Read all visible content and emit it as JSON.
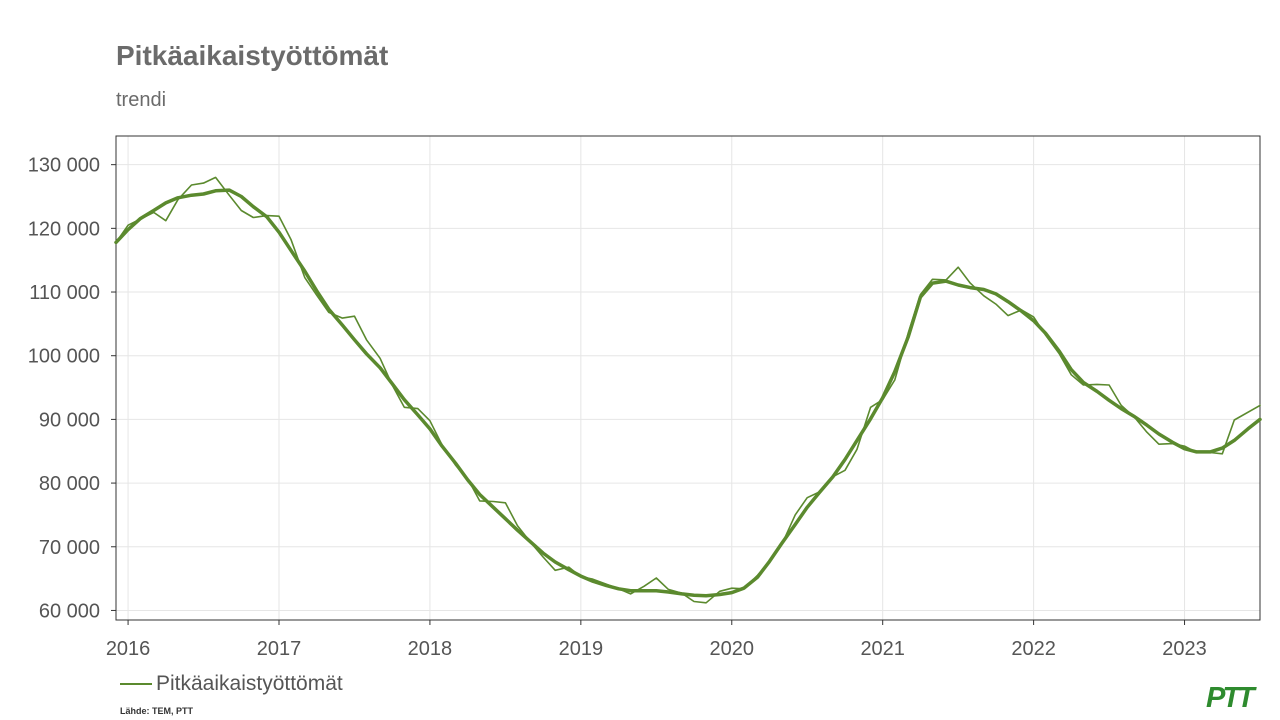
{
  "header": {
    "title": "Pitkäaikaistyöttömät",
    "subtitle": "trendi"
  },
  "legend": {
    "label": "Pitkäaikaistyöttömät"
  },
  "footer": {
    "source": "Lähde: TEM, PTT",
    "logo": "PTT"
  },
  "colors": {
    "series": "#5b8a2e",
    "grid": "#e6e6e6",
    "axis": "#333333",
    "logo": "#2e8b2e"
  },
  "chart_data": {
    "type": "line",
    "title": "Pitkäaikaistyöttömät",
    "subtitle": "trendi",
    "xlabel": "",
    "ylabel": "",
    "grid": true,
    "legend_position": "bottom-left",
    "xlim": [
      2015.92,
      2023.5
    ],
    "ylim": [
      58500,
      134500
    ],
    "x_ticks": [
      2016,
      2017,
      2018,
      2019,
      2020,
      2021,
      2022,
      2023
    ],
    "x_tick_labels": [
      "2016",
      "2017",
      "2018",
      "2019",
      "2020",
      "2021",
      "2022",
      "2023"
    ],
    "y_ticks": [
      60000,
      70000,
      80000,
      90000,
      100000,
      110000,
      120000,
      130000
    ],
    "y_tick_labels": [
      "60 000",
      "70 000",
      "80 000",
      "90 000",
      "100 000",
      "110 000",
      "120 000",
      "130 000"
    ],
    "series": [
      {
        "name": "Pitkäaikaistyöttömät",
        "style": "thin",
        "points": [
          [
            2015.92,
            117800
          ],
          [
            2016.0,
            120500
          ],
          [
            2016.17,
            122500
          ],
          [
            2016.25,
            121200
          ],
          [
            2016.33,
            124500
          ],
          [
            2016.42,
            126800
          ],
          [
            2016.5,
            127100
          ],
          [
            2016.58,
            128000
          ],
          [
            2016.67,
            125200
          ],
          [
            2016.75,
            122800
          ],
          [
            2016.83,
            121700
          ],
          [
            2016.92,
            122000
          ],
          [
            2017.0,
            121900
          ],
          [
            2017.08,
            118200
          ],
          [
            2017.17,
            112300
          ],
          [
            2017.25,
            109500
          ],
          [
            2017.33,
            106800
          ],
          [
            2017.42,
            105900
          ],
          [
            2017.5,
            106200
          ],
          [
            2017.58,
            102500
          ],
          [
            2017.67,
            99600
          ],
          [
            2017.75,
            95400
          ],
          [
            2017.83,
            91900
          ],
          [
            2017.92,
            91700
          ],
          [
            2018.0,
            89800
          ],
          [
            2018.08,
            86000
          ],
          [
            2018.17,
            82800
          ],
          [
            2018.25,
            80700
          ],
          [
            2018.33,
            77200
          ],
          [
            2018.42,
            77100
          ],
          [
            2018.5,
            76900
          ],
          [
            2018.58,
            73300
          ],
          [
            2018.67,
            70600
          ],
          [
            2018.75,
            68400
          ],
          [
            2018.83,
            66300
          ],
          [
            2018.92,
            66800
          ],
          [
            2019.0,
            65300
          ],
          [
            2019.08,
            64900
          ],
          [
            2019.17,
            64100
          ],
          [
            2019.25,
            63400
          ],
          [
            2019.33,
            62600
          ],
          [
            2019.42,
            63800
          ],
          [
            2019.5,
            65100
          ],
          [
            2019.58,
            63300
          ],
          [
            2019.67,
            62700
          ],
          [
            2019.75,
            61400
          ],
          [
            2019.83,
            61200
          ],
          [
            2019.92,
            63000
          ],
          [
            2020.0,
            63500
          ],
          [
            2020.08,
            63400
          ],
          [
            2020.17,
            65500
          ],
          [
            2020.25,
            67600
          ],
          [
            2020.33,
            70300
          ],
          [
            2020.42,
            75000
          ],
          [
            2020.5,
            77700
          ],
          [
            2020.58,
            78600
          ],
          [
            2020.67,
            81000
          ],
          [
            2020.75,
            82000
          ],
          [
            2020.83,
            85300
          ],
          [
            2020.92,
            91900
          ],
          [
            2021.0,
            93100
          ],
          [
            2021.08,
            96200
          ],
          [
            2021.17,
            103600
          ],
          [
            2021.25,
            109600
          ],
          [
            2021.33,
            112000
          ],
          [
            2021.42,
            111900
          ],
          [
            2021.5,
            113900
          ],
          [
            2021.58,
            111400
          ],
          [
            2021.67,
            109400
          ],
          [
            2021.75,
            108100
          ],
          [
            2021.83,
            106300
          ],
          [
            2021.92,
            107200
          ],
          [
            2022.0,
            106100
          ],
          [
            2022.08,
            103200
          ],
          [
            2022.17,
            100300
          ],
          [
            2022.25,
            97000
          ],
          [
            2022.33,
            95400
          ],
          [
            2022.42,
            95500
          ],
          [
            2022.5,
            95400
          ],
          [
            2022.58,
            92200
          ],
          [
            2022.67,
            90300
          ],
          [
            2022.75,
            88000
          ],
          [
            2022.83,
            86100
          ],
          [
            2022.92,
            86200
          ],
          [
            2023.0,
            85800
          ],
          [
            2023.08,
            84800
          ],
          [
            2023.17,
            84800
          ],
          [
            2023.25,
            84600
          ],
          [
            2023.33,
            89900
          ],
          [
            2023.5,
            92200
          ]
        ]
      },
      {
        "name": "Pitkäaikaistyöttömät",
        "style": "thick",
        "points": [
          [
            2015.92,
            117800
          ],
          [
            2016.0,
            119800
          ],
          [
            2016.08,
            121500
          ],
          [
            2016.17,
            122800
          ],
          [
            2016.25,
            124000
          ],
          [
            2016.33,
            124800
          ],
          [
            2016.42,
            125200
          ],
          [
            2016.5,
            125400
          ],
          [
            2016.58,
            125900
          ],
          [
            2016.67,
            126000
          ],
          [
            2016.75,
            125000
          ],
          [
            2016.83,
            123400
          ],
          [
            2016.92,
            121800
          ],
          [
            2017.0,
            119400
          ],
          [
            2017.08,
            116500
          ],
          [
            2017.17,
            113300
          ],
          [
            2017.25,
            110200
          ],
          [
            2017.33,
            107300
          ],
          [
            2017.42,
            104800
          ],
          [
            2017.5,
            102500
          ],
          [
            2017.58,
            100300
          ],
          [
            2017.67,
            98100
          ],
          [
            2017.75,
            95600
          ],
          [
            2017.83,
            93100
          ],
          [
            2017.92,
            90700
          ],
          [
            2018.0,
            88500
          ],
          [
            2018.08,
            85800
          ],
          [
            2018.17,
            83100
          ],
          [
            2018.25,
            80500
          ],
          [
            2018.33,
            78200
          ],
          [
            2018.42,
            76200
          ],
          [
            2018.5,
            74400
          ],
          [
            2018.58,
            72600
          ],
          [
            2018.67,
            70700
          ],
          [
            2018.75,
            69000
          ],
          [
            2018.83,
            67600
          ],
          [
            2018.92,
            66400
          ],
          [
            2019.0,
            65400
          ],
          [
            2019.08,
            64600
          ],
          [
            2019.17,
            63900
          ],
          [
            2019.25,
            63400
          ],
          [
            2019.33,
            63100
          ],
          [
            2019.42,
            63100
          ],
          [
            2019.5,
            63100
          ],
          [
            2019.58,
            62900
          ],
          [
            2019.67,
            62600
          ],
          [
            2019.75,
            62400
          ],
          [
            2019.83,
            62300
          ],
          [
            2019.92,
            62500
          ],
          [
            2020.0,
            62800
          ],
          [
            2020.08,
            63500
          ],
          [
            2020.17,
            65200
          ],
          [
            2020.25,
            67700
          ],
          [
            2020.33,
            70500
          ],
          [
            2020.42,
            73500
          ],
          [
            2020.5,
            76200
          ],
          [
            2020.58,
            78500
          ],
          [
            2020.67,
            81000
          ],
          [
            2020.75,
            83700
          ],
          [
            2020.83,
            86700
          ],
          [
            2020.92,
            90100
          ],
          [
            2021.0,
            93400
          ],
          [
            2021.08,
            97500
          ],
          [
            2021.17,
            103000
          ],
          [
            2021.25,
            109200
          ],
          [
            2021.33,
            111400
          ],
          [
            2021.42,
            111700
          ],
          [
            2021.5,
            111100
          ],
          [
            2021.58,
            110700
          ],
          [
            2021.67,
            110400
          ],
          [
            2021.75,
            109700
          ],
          [
            2021.83,
            108500
          ],
          [
            2021.92,
            107000
          ],
          [
            2022.0,
            105500
          ],
          [
            2022.08,
            103500
          ],
          [
            2022.17,
            100700
          ],
          [
            2022.25,
            97800
          ],
          [
            2022.33,
            95800
          ],
          [
            2022.42,
            94400
          ],
          [
            2022.5,
            93000
          ],
          [
            2022.58,
            91700
          ],
          [
            2022.67,
            90400
          ],
          [
            2022.75,
            89100
          ],
          [
            2022.83,
            87700
          ],
          [
            2022.92,
            86400
          ],
          [
            2023.0,
            85400
          ],
          [
            2023.08,
            84900
          ],
          [
            2023.17,
            84900
          ],
          [
            2023.25,
            85500
          ],
          [
            2023.33,
            86700
          ],
          [
            2023.42,
            88500
          ],
          [
            2023.5,
            90000
          ]
        ]
      }
    ]
  }
}
